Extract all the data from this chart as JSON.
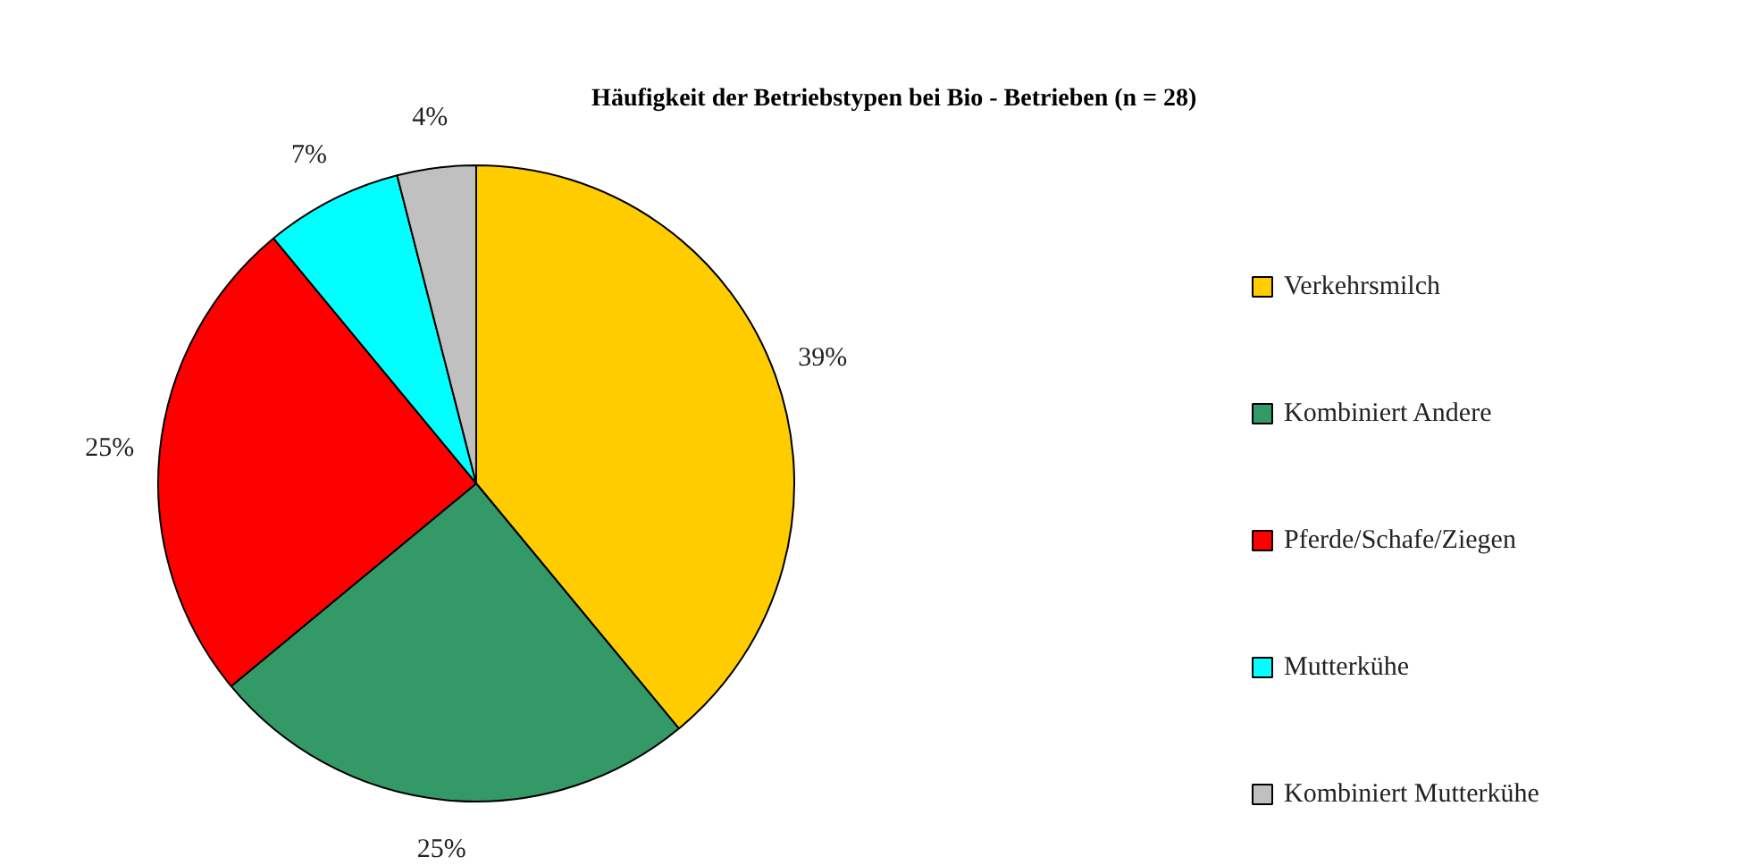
{
  "chart_data": {
    "type": "pie",
    "title": "Häufigkeit der Betriebstypen bei Bio - Betrieben (n = 28)",
    "categories": [
      "Verkehrsmilch",
      "Kombiniert Andere",
      "Pferde/Schafe/Ziegen",
      "Mutterkühe",
      "Kombiniert Mutterkühe"
    ],
    "values": [
      39,
      25,
      25,
      7,
      4
    ],
    "colors": [
      "#ffcc00",
      "#339966",
      "#ff0000",
      "#00ffff",
      "#c0c0c0"
    ],
    "value_labels": [
      "39%",
      "25%",
      "25%",
      "7%",
      "4%"
    ],
    "legend": "right"
  }
}
